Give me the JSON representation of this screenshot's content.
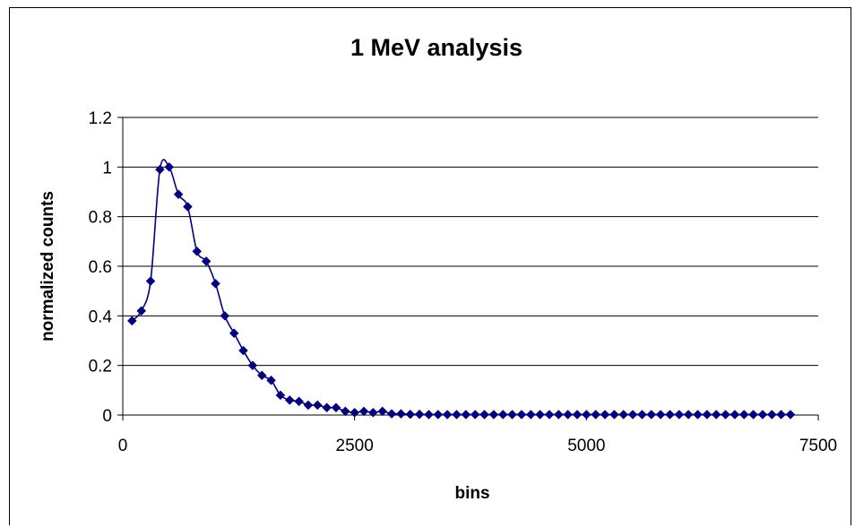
{
  "chart_data": {
    "type": "line",
    "title": "1 MeV analysis",
    "xlabel": "bins",
    "ylabel": "normalized counts",
    "xlim": [
      0,
      7500
    ],
    "ylim": [
      0,
      1.2
    ],
    "x_ticks": [
      "0",
      "2500",
      "5000",
      "7500"
    ],
    "y_ticks": [
      "0",
      "0.2",
      "0.4",
      "0.6",
      "0.8",
      "1",
      "1.2"
    ],
    "grid": "horizontal major gridlines",
    "legend": "none",
    "marker": "diamond",
    "series": [
      {
        "color": "#000080",
        "x": [
          100,
          200,
          300,
          400,
          500,
          600,
          700,
          800,
          900,
          1000,
          1100,
          1200,
          1300,
          1400,
          1500,
          1600,
          1700,
          1800,
          1900,
          2000,
          2100,
          2200,
          2300,
          2400,
          2500,
          2600,
          2700,
          2800,
          2900,
          3000,
          3100,
          3200,
          3300,
          3400,
          3500,
          3600,
          3700,
          3800,
          3900,
          4000,
          4100,
          4200,
          4300,
          4400,
          4500,
          4600,
          4700,
          4800,
          4900,
          5000,
          5100,
          5200,
          5300,
          5400,
          5500,
          5600,
          5700,
          5800,
          5900,
          6000,
          6100,
          6200,
          6300,
          6400,
          6500,
          6600,
          6700,
          6800,
          6900,
          7000,
          7100,
          7200
        ],
        "y": [
          0.38,
          0.42,
          0.54,
          0.99,
          1.0,
          0.89,
          0.84,
          0.66,
          0.62,
          0.53,
          0.4,
          0.33,
          0.26,
          0.2,
          0.16,
          0.14,
          0.08,
          0.06,
          0.055,
          0.04,
          0.04,
          0.03,
          0.03,
          0.015,
          0.01,
          0.015,
          0.01,
          0.015,
          0.005,
          0.005,
          0.003,
          0.003,
          0.002,
          0.002,
          0.002,
          0.002,
          0.002,
          0.002,
          0.002,
          0.002,
          0.002,
          0.002,
          0.002,
          0.002,
          0.002,
          0.002,
          0.002,
          0.002,
          0.002,
          0.002,
          0.002,
          0.002,
          0.002,
          0.002,
          0.002,
          0.002,
          0.002,
          0.002,
          0.002,
          0.002,
          0.002,
          0.002,
          0.002,
          0.002,
          0.002,
          0.002,
          0.002,
          0.002,
          0.002,
          0.002,
          0.002,
          0.002
        ]
      }
    ]
  }
}
